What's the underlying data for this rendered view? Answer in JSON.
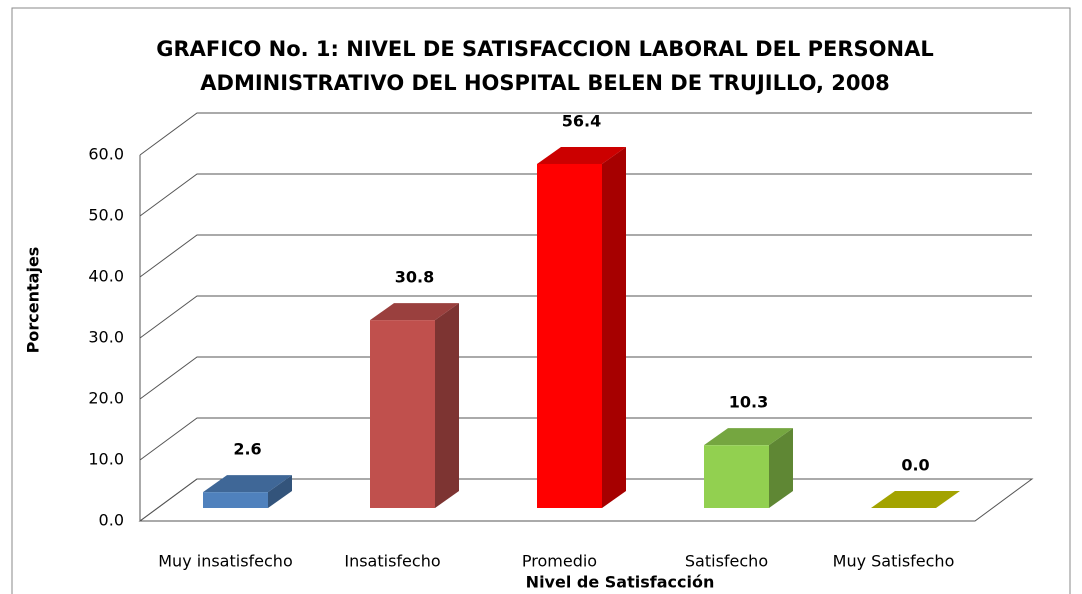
{
  "chart_data": {
    "type": "bar3d",
    "title": [
      "GRAFICO No. 1: NIVEL DE SATISFACCION LABORAL DEL PERSONAL",
      "ADMINISTRATIVO DEL HOSPITAL BELEN DE TRUJILLO, 2008"
    ],
    "x_label": "Nivel de Satisfacción",
    "y_label": "Porcentajes",
    "categories": [
      "Muy insatisfecho",
      "Insatisfecho",
      "Promedio",
      "Satisfecho",
      "Muy Satisfecho"
    ],
    "values": [
      2.6,
      30.8,
      56.4,
      10.3,
      0.0
    ],
    "value_labels": [
      "2.6",
      "30.8",
      "56.4",
      "10.3",
      "0.0"
    ],
    "colors": [
      "#4f81bd",
      "#c0504d",
      "#ff0000",
      "#92d050",
      "#cccc00"
    ],
    "ylim": [
      0,
      60
    ],
    "yticks": [
      {
        "value": 0,
        "label": "0.0"
      },
      {
        "value": 10,
        "label": "10.0"
      },
      {
        "value": 20,
        "label": "20.0"
      },
      {
        "value": 30,
        "label": "30.0"
      },
      {
        "value": 40,
        "label": "40.0"
      },
      {
        "value": 50,
        "label": "50.0"
      },
      {
        "value": 60,
        "label": "60.0"
      }
    ],
    "grid": true
  }
}
